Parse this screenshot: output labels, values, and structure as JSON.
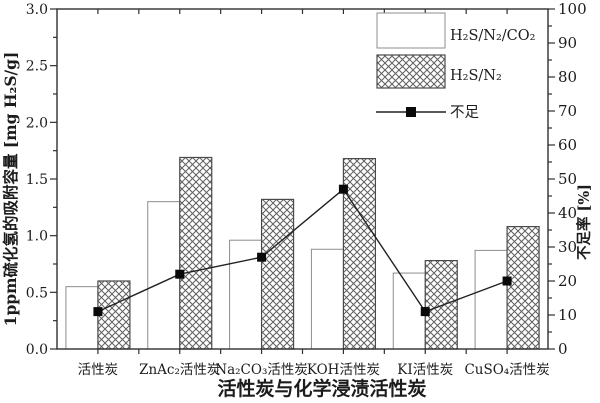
{
  "chart_data": {
    "type": "bar",
    "categories": [
      "活性炭",
      "ZnAc₂活性炭",
      "Na₂CO₃活性炭",
      "KOH活性炭",
      "KI活性炭",
      "CuSO₄活性炭"
    ],
    "series": [
      {
        "name": "H₂S/N₂/CO₂",
        "fill": "open",
        "values": [
          0.55,
          1.3,
          0.96,
          0.88,
          0.67,
          0.87
        ]
      },
      {
        "name": "H₂S/N₂",
        "fill": "crosshatch",
        "values": [
          0.6,
          1.69,
          1.32,
          1.68,
          0.78,
          1.08
        ]
      }
    ],
    "line_series": {
      "name": "不足",
      "axis": "right",
      "marker": "filled-square",
      "values": [
        11,
        22,
        27,
        47,
        11,
        20
      ]
    },
    "xlabel": "活性炭与化学浸渍活性炭",
    "ylabel_left": "1ppm硫化氢的吸附容量 [mg H₂S/g]",
    "ylabel_right": "不足率 [%]",
    "yaxis_left": {
      "min": 0,
      "max": 3.0,
      "major_step": 0.5,
      "minor_step": 0.25,
      "tick_labels": [
        "0.0",
        "0.5",
        "1.0",
        "1.5",
        "2.0",
        "2.5",
        "3.0"
      ]
    },
    "yaxis_right": {
      "min": 0,
      "max": 100,
      "major_step": 10,
      "minor_step": 5,
      "tick_labels": [
        "0",
        "10",
        "20",
        "30",
        "40",
        "50",
        "60",
        "70",
        "80",
        "90",
        "100"
      ]
    },
    "legend": {
      "position": "top-right",
      "items": [
        "H₂S/N₂/CO₂",
        "H₂S/N₂",
        "不足"
      ]
    },
    "grid": false,
    "colors": {
      "background": "#ffffff",
      "axis": "#2f2f2f",
      "text": "#1c1c1c",
      "open_bar_stroke": "#8d8d8d",
      "open_bar_fill": "#ffffff",
      "hatch_bar_stroke": "#4a4a4a",
      "hatch_line": "#5f5f5f",
      "line": "#222222",
      "marker": "#0a0a0a"
    }
  }
}
